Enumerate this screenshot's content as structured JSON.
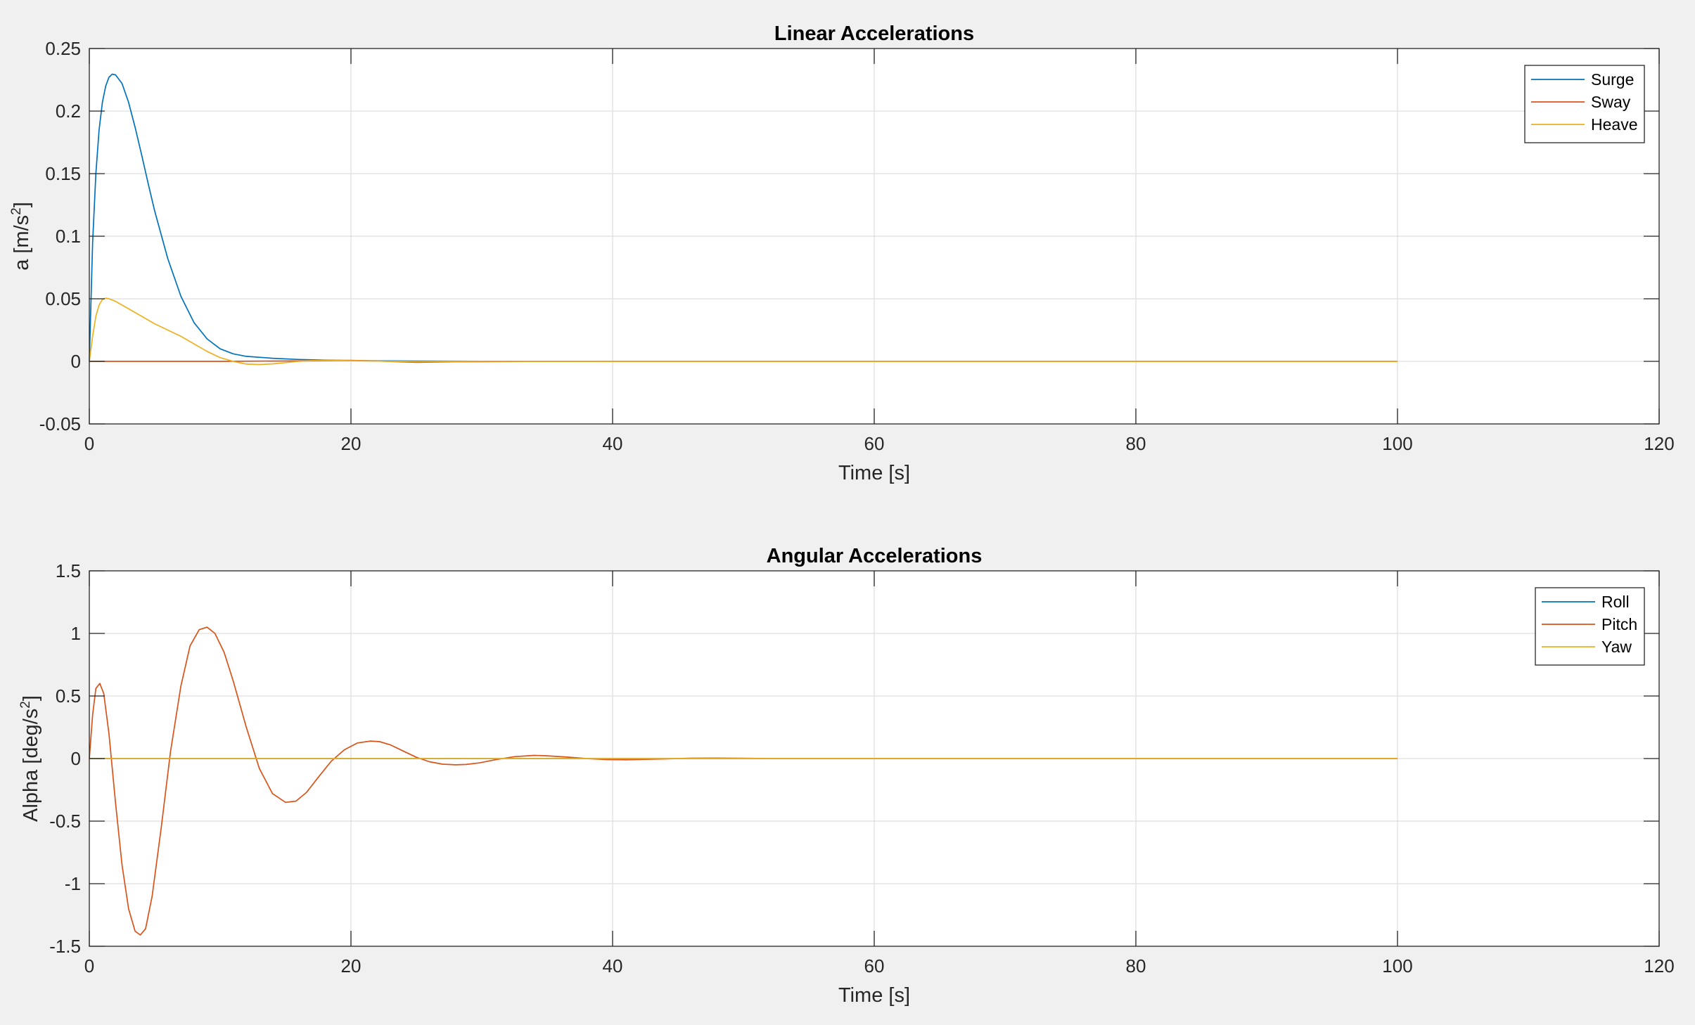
{
  "chart_data": [
    {
      "type": "line",
      "title": "Linear Accelerations",
      "xlabel": "Time [s]",
      "ylabel_main": "a [m/s",
      "ylabel_sup": "2",
      "ylabel_close": "]",
      "xlim": [
        0,
        120
      ],
      "ylim": [
        -0.05,
        0.25
      ],
      "xticks": [
        0,
        20,
        40,
        60,
        80,
        100,
        120
      ],
      "yticks": [
        -0.05,
        0,
        0.05,
        0.1,
        0.15,
        0.2,
        0.25
      ],
      "xtick_labels": [
        "0",
        "20",
        "40",
        "60",
        "80",
        "100",
        "120"
      ],
      "ytick_labels": [
        "-0.05",
        "0",
        "0.05",
        "0.1",
        "0.15",
        "0.2",
        "0.25"
      ],
      "grid": true,
      "legend_position": "top-right",
      "series": [
        {
          "name": "Surge",
          "color": "#0072BD",
          "x": [
            0,
            0.25,
            0.5,
            0.75,
            1,
            1.25,
            1.5,
            1.75,
            2,
            2.5,
            3,
            3.5,
            4,
            4.5,
            5,
            6,
            7,
            8,
            9,
            10,
            11,
            12,
            14,
            16,
            18,
            20,
            25,
            30,
            40,
            50,
            60,
            70,
            80,
            90,
            100
          ],
          "y": [
            0,
            0.095,
            0.15,
            0.185,
            0.207,
            0.22,
            0.227,
            0.2295,
            0.229,
            0.222,
            0.207,
            0.187,
            0.165,
            0.142,
            0.12,
            0.082,
            0.052,
            0.031,
            0.018,
            0.01,
            0.006,
            0.004,
            0.0025,
            0.0015,
            0.001,
            0.0006,
            0.0002,
            0.0001,
            0,
            0,
            0,
            0,
            0,
            0,
            0
          ]
        },
        {
          "name": "Sway",
          "color": "#D95319",
          "x": [
            0,
            10,
            18,
            20,
            22,
            25,
            28,
            35,
            100
          ],
          "y": [
            0,
            0,
            0.0005,
            0.0008,
            0.0003,
            -0.0008,
            -0.0003,
            0,
            0
          ]
        },
        {
          "name": "Heave",
          "color": "#EDB120",
          "x": [
            0,
            0.25,
            0.5,
            0.75,
            1,
            1.25,
            1.5,
            2,
            3,
            4,
            5,
            6,
            7,
            8,
            9,
            10,
            11,
            12,
            13,
            14,
            15,
            16,
            17,
            18,
            20,
            22,
            25,
            30,
            40,
            50,
            100
          ],
          "y": [
            0,
            0.02,
            0.036,
            0.045,
            0.0495,
            0.0505,
            0.05,
            0.048,
            0.042,
            0.036,
            0.03,
            0.025,
            0.02,
            0.014,
            0.008,
            0.003,
            0,
            -0.0022,
            -0.0025,
            -0.002,
            -0.001,
            0,
            0.0006,
            0.0008,
            0.0005,
            0.0002,
            -0.0002,
            0.0001,
            0,
            0,
            0
          ]
        }
      ]
    },
    {
      "type": "line",
      "title": "Angular Accelerations",
      "xlabel": "Time [s]",
      "ylabel_main": "Alpha [deg/s",
      "ylabel_sup": "2",
      "ylabel_close": "]",
      "xlim": [
        0,
        120
      ],
      "ylim": [
        -1.5,
        1.5
      ],
      "xticks": [
        0,
        20,
        40,
        60,
        80,
        100,
        120
      ],
      "yticks": [
        -1.5,
        -1,
        -0.5,
        0,
        0.5,
        1,
        1.5
      ],
      "xtick_labels": [
        "0",
        "20",
        "40",
        "60",
        "80",
        "100",
        "120"
      ],
      "ytick_labels": [
        "-1.5",
        "-1",
        "-0.5",
        "0",
        "0.5",
        "1",
        "1.5"
      ],
      "grid": true,
      "legend_position": "top-right",
      "series": [
        {
          "name": "Roll",
          "color": "#0072BD",
          "x": [
            0,
            100
          ],
          "y": [
            0,
            0
          ]
        },
        {
          "name": "Pitch",
          "color": "#D95319",
          "x": [
            0,
            0.25,
            0.5,
            0.8,
            1.1,
            1.5,
            2,
            2.5,
            3,
            3.5,
            3.9,
            4.3,
            4.8,
            5.5,
            6.2,
            7,
            7.7,
            8.4,
            9,
            9.6,
            10.3,
            11,
            12,
            13,
            14,
            15,
            15.8,
            16.6,
            17.5,
            18.5,
            19.5,
            20.5,
            21.5,
            22.2,
            23,
            24,
            25,
            26,
            27,
            28,
            28.8,
            29.8,
            31,
            32.5,
            34,
            35,
            36.5,
            38,
            39.5,
            41,
            42.5,
            44,
            46,
            48,
            50,
            52,
            55,
            60,
            70,
            80,
            90,
            100
          ],
          "y": [
            0,
            0.35,
            0.56,
            0.6,
            0.52,
            0.2,
            -0.35,
            -0.85,
            -1.2,
            -1.38,
            -1.41,
            -1.36,
            -1.1,
            -0.55,
            0.05,
            0.58,
            0.9,
            1.03,
            1.05,
            1.0,
            0.85,
            0.62,
            0.25,
            -0.08,
            -0.28,
            -0.35,
            -0.34,
            -0.27,
            -0.15,
            -0.02,
            0.07,
            0.125,
            0.14,
            0.135,
            0.11,
            0.06,
            0.01,
            -0.025,
            -0.045,
            -0.05,
            -0.047,
            -0.035,
            -0.01,
            0.015,
            0.025,
            0.022,
            0.012,
            0,
            -0.008,
            -0.01,
            -0.007,
            -0.003,
            0.003,
            0.004,
            0.002,
            0,
            0,
            0,
            0,
            0,
            0,
            0
          ]
        },
        {
          "name": "Yaw",
          "color": "#EDB120",
          "x": [
            0,
            100
          ],
          "y": [
            0,
            0
          ]
        }
      ]
    }
  ]
}
